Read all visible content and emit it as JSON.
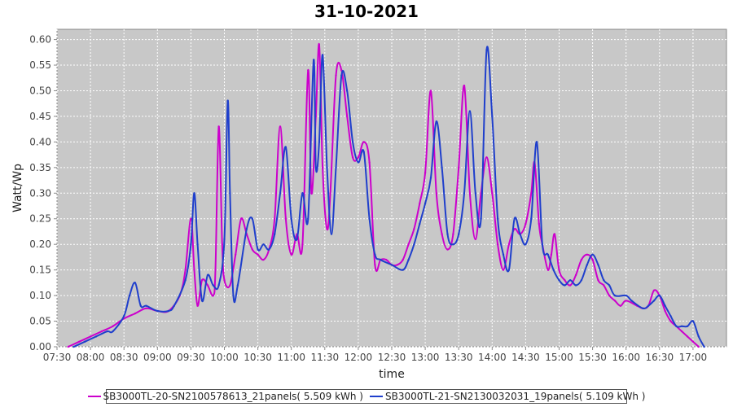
{
  "chart_data": {
    "type": "line",
    "title": "31-10-2021",
    "xlabel": "time",
    "ylabel": "Watt/Wp",
    "xlim": [
      "07:30",
      "17:30"
    ],
    "ylim": [
      0,
      0.62
    ],
    "x_ticks": [
      "07:30",
      "08:00",
      "08:30",
      "09:00",
      "09:30",
      "10:00",
      "10:30",
      "11:00",
      "11:30",
      "12:00",
      "12:30",
      "13:00",
      "13:30",
      "14:00",
      "14:30",
      "15:00",
      "15:30",
      "16:00",
      "16:30",
      "17:00"
    ],
    "y_ticks": [
      "0.00",
      "0.05",
      "0.10",
      "0.15",
      "0.20",
      "0.25",
      "0.30",
      "0.35",
      "0.40",
      "0.45",
      "0.50",
      "0.55",
      "0.60"
    ],
    "grid": true,
    "legend_position": "bottom",
    "series": [
      {
        "name": "SB3000TL-20-SN2100578613_21panels( 5.509 kWh )",
        "color": "#cc00cc",
        "points": [
          [
            "07:40",
            0.0
          ],
          [
            "07:50",
            0.01
          ],
          [
            "08:00",
            0.02
          ],
          [
            "08:10",
            0.03
          ],
          [
            "08:20",
            0.04
          ],
          [
            "08:30",
            0.055
          ],
          [
            "08:40",
            0.065
          ],
          [
            "08:50",
            0.075
          ],
          [
            "09:00",
            0.07
          ],
          [
            "09:10",
            0.07
          ],
          [
            "09:20",
            0.1
          ],
          [
            "09:25",
            0.15
          ],
          [
            "09:30",
            0.25
          ],
          [
            "09:33",
            0.15
          ],
          [
            "09:36",
            0.08
          ],
          [
            "09:40",
            0.13
          ],
          [
            "09:45",
            0.12
          ],
          [
            "09:50",
            0.1
          ],
          [
            "09:52",
            0.15
          ],
          [
            "09:55",
            0.43
          ],
          [
            "09:58",
            0.2
          ],
          [
            "10:00",
            0.13
          ],
          [
            "10:05",
            0.12
          ],
          [
            "10:10",
            0.18
          ],
          [
            "10:15",
            0.25
          ],
          [
            "10:20",
            0.22
          ],
          [
            "10:25",
            0.19
          ],
          [
            "10:30",
            0.18
          ],
          [
            "10:35",
            0.17
          ],
          [
            "10:40",
            0.19
          ],
          [
            "10:45",
            0.25
          ],
          [
            "10:50",
            0.43
          ],
          [
            "10:55",
            0.25
          ],
          [
            "11:00",
            0.18
          ],
          [
            "11:05",
            0.22
          ],
          [
            "11:10",
            0.2
          ],
          [
            "11:15",
            0.54
          ],
          [
            "11:18",
            0.3
          ],
          [
            "11:22",
            0.45
          ],
          [
            "11:25",
            0.59
          ],
          [
            "11:28",
            0.35
          ],
          [
            "11:32",
            0.23
          ],
          [
            "11:35",
            0.3
          ],
          [
            "11:40",
            0.53
          ],
          [
            "11:45",
            0.54
          ],
          [
            "11:50",
            0.45
          ],
          [
            "11:55",
            0.37
          ],
          [
            "12:00",
            0.37
          ],
          [
            "12:05",
            0.4
          ],
          [
            "12:10",
            0.36
          ],
          [
            "12:15",
            0.16
          ],
          [
            "12:20",
            0.17
          ],
          [
            "12:25",
            0.17
          ],
          [
            "12:30",
            0.16
          ],
          [
            "12:35",
            0.16
          ],
          [
            "12:40",
            0.17
          ],
          [
            "12:45",
            0.2
          ],
          [
            "12:50",
            0.23
          ],
          [
            "12:55",
            0.28
          ],
          [
            "13:00",
            0.34
          ],
          [
            "13:05",
            0.5
          ],
          [
            "13:10",
            0.3
          ],
          [
            "13:15",
            0.22
          ],
          [
            "13:20",
            0.19
          ],
          [
            "13:25",
            0.22
          ],
          [
            "13:30",
            0.35
          ],
          [
            "13:35",
            0.51
          ],
          [
            "13:40",
            0.3
          ],
          [
            "13:45",
            0.21
          ],
          [
            "13:50",
            0.3
          ],
          [
            "13:55",
            0.37
          ],
          [
            "14:00",
            0.3
          ],
          [
            "14:05",
            0.2
          ],
          [
            "14:10",
            0.15
          ],
          [
            "14:15",
            0.2
          ],
          [
            "14:20",
            0.23
          ],
          [
            "14:25",
            0.22
          ],
          [
            "14:30",
            0.24
          ],
          [
            "14:35",
            0.3
          ],
          [
            "14:38",
            0.36
          ],
          [
            "14:42",
            0.24
          ],
          [
            "14:45",
            0.2
          ],
          [
            "14:50",
            0.15
          ],
          [
            "14:53",
            0.18
          ],
          [
            "14:56",
            0.22
          ],
          [
            "15:00",
            0.15
          ],
          [
            "15:05",
            0.13
          ],
          [
            "15:10",
            0.12
          ],
          [
            "15:15",
            0.14
          ],
          [
            "15:20",
            0.17
          ],
          [
            "15:25",
            0.18
          ],
          [
            "15:30",
            0.17
          ],
          [
            "15:35",
            0.13
          ],
          [
            "15:40",
            0.12
          ],
          [
            "15:45",
            0.1
          ],
          [
            "15:50",
            0.09
          ],
          [
            "15:55",
            0.08
          ],
          [
            "16:00",
            0.09
          ],
          [
            "16:10",
            0.08
          ],
          [
            "16:15",
            0.075
          ],
          [
            "16:20",
            0.08
          ],
          [
            "16:25",
            0.11
          ],
          [
            "16:30",
            0.1
          ],
          [
            "16:35",
            0.07
          ],
          [
            "16:40",
            0.05
          ],
          [
            "16:45",
            0.04
          ],
          [
            "16:50",
            0.03
          ],
          [
            "16:55",
            0.02
          ],
          [
            "17:00",
            0.01
          ],
          [
            "17:05",
            0.0
          ]
        ]
      },
      {
        "name": "SB3000TL-21-SN2130032031_19panels( 5.109 kWh )",
        "color": "#1f3fcc",
        "points": [
          [
            "07:45",
            0.0
          ],
          [
            "07:55",
            0.01
          ],
          [
            "08:05",
            0.02
          ],
          [
            "08:15",
            0.03
          ],
          [
            "08:20",
            0.03
          ],
          [
            "08:30",
            0.06
          ],
          [
            "08:35",
            0.1
          ],
          [
            "08:40",
            0.125
          ],
          [
            "08:45",
            0.08
          ],
          [
            "08:50",
            0.08
          ],
          [
            "09:00",
            0.07
          ],
          [
            "09:10",
            0.07
          ],
          [
            "09:15",
            0.08
          ],
          [
            "09:25",
            0.13
          ],
          [
            "09:30",
            0.2
          ],
          [
            "09:33",
            0.3
          ],
          [
            "09:36",
            0.2
          ],
          [
            "09:40",
            0.09
          ],
          [
            "09:45",
            0.14
          ],
          [
            "09:50",
            0.12
          ],
          [
            "09:55",
            0.12
          ],
          [
            "10:00",
            0.21
          ],
          [
            "10:03",
            0.48
          ],
          [
            "10:05",
            0.3
          ],
          [
            "10:08",
            0.1
          ],
          [
            "10:12",
            0.12
          ],
          [
            "10:20",
            0.23
          ],
          [
            "10:25",
            0.25
          ],
          [
            "10:30",
            0.19
          ],
          [
            "10:35",
            0.2
          ],
          [
            "10:40",
            0.19
          ],
          [
            "10:45",
            0.22
          ],
          [
            "10:50",
            0.3
          ],
          [
            "10:55",
            0.39
          ],
          [
            "11:00",
            0.25
          ],
          [
            "11:05",
            0.21
          ],
          [
            "11:10",
            0.3
          ],
          [
            "11:15",
            0.25
          ],
          [
            "11:20",
            0.56
          ],
          [
            "11:22",
            0.35
          ],
          [
            "11:25",
            0.4
          ],
          [
            "11:28",
            0.57
          ],
          [
            "11:32",
            0.35
          ],
          [
            "11:36",
            0.22
          ],
          [
            "11:40",
            0.35
          ],
          [
            "11:45",
            0.53
          ],
          [
            "11:50",
            0.5
          ],
          [
            "11:55",
            0.4
          ],
          [
            "12:00",
            0.36
          ],
          [
            "12:05",
            0.38
          ],
          [
            "12:10",
            0.25
          ],
          [
            "12:15",
            0.18
          ],
          [
            "12:20",
            0.17
          ],
          [
            "12:30",
            0.16
          ],
          [
            "12:40",
            0.15
          ],
          [
            "12:45",
            0.17
          ],
          [
            "12:50",
            0.2
          ],
          [
            "12:55",
            0.24
          ],
          [
            "13:00",
            0.28
          ],
          [
            "13:05",
            0.33
          ],
          [
            "13:10",
            0.44
          ],
          [
            "13:15",
            0.35
          ],
          [
            "13:20",
            0.22
          ],
          [
            "13:25",
            0.2
          ],
          [
            "13:30",
            0.22
          ],
          [
            "13:35",
            0.3
          ],
          [
            "13:40",
            0.46
          ],
          [
            "13:45",
            0.3
          ],
          [
            "13:50",
            0.25
          ],
          [
            "13:55",
            0.58
          ],
          [
            "14:00",
            0.45
          ],
          [
            "14:05",
            0.25
          ],
          [
            "14:10",
            0.18
          ],
          [
            "14:15",
            0.15
          ],
          [
            "14:20",
            0.25
          ],
          [
            "14:25",
            0.22
          ],
          [
            "14:30",
            0.2
          ],
          [
            "14:35",
            0.25
          ],
          [
            "14:40",
            0.4
          ],
          [
            "14:45",
            0.2
          ],
          [
            "14:50",
            0.18
          ],
          [
            "14:55",
            0.15
          ],
          [
            "15:00",
            0.13
          ],
          [
            "15:05",
            0.12
          ],
          [
            "15:10",
            0.13
          ],
          [
            "15:15",
            0.12
          ],
          [
            "15:20",
            0.13
          ],
          [
            "15:25",
            0.16
          ],
          [
            "15:30",
            0.18
          ],
          [
            "15:35",
            0.16
          ],
          [
            "15:40",
            0.13
          ],
          [
            "15:45",
            0.12
          ],
          [
            "15:50",
            0.1
          ],
          [
            "16:00",
            0.1
          ],
          [
            "16:05",
            0.09
          ],
          [
            "16:15",
            0.075
          ],
          [
            "16:20",
            0.08
          ],
          [
            "16:25",
            0.09
          ],
          [
            "16:30",
            0.1
          ],
          [
            "16:35",
            0.08
          ],
          [
            "16:40",
            0.06
          ],
          [
            "16:45",
            0.04
          ],
          [
            "16:50",
            0.04
          ],
          [
            "16:55",
            0.04
          ],
          [
            "17:00",
            0.05
          ],
          [
            "17:05",
            0.02
          ],
          [
            "17:10",
            0.0
          ]
        ]
      }
    ]
  }
}
